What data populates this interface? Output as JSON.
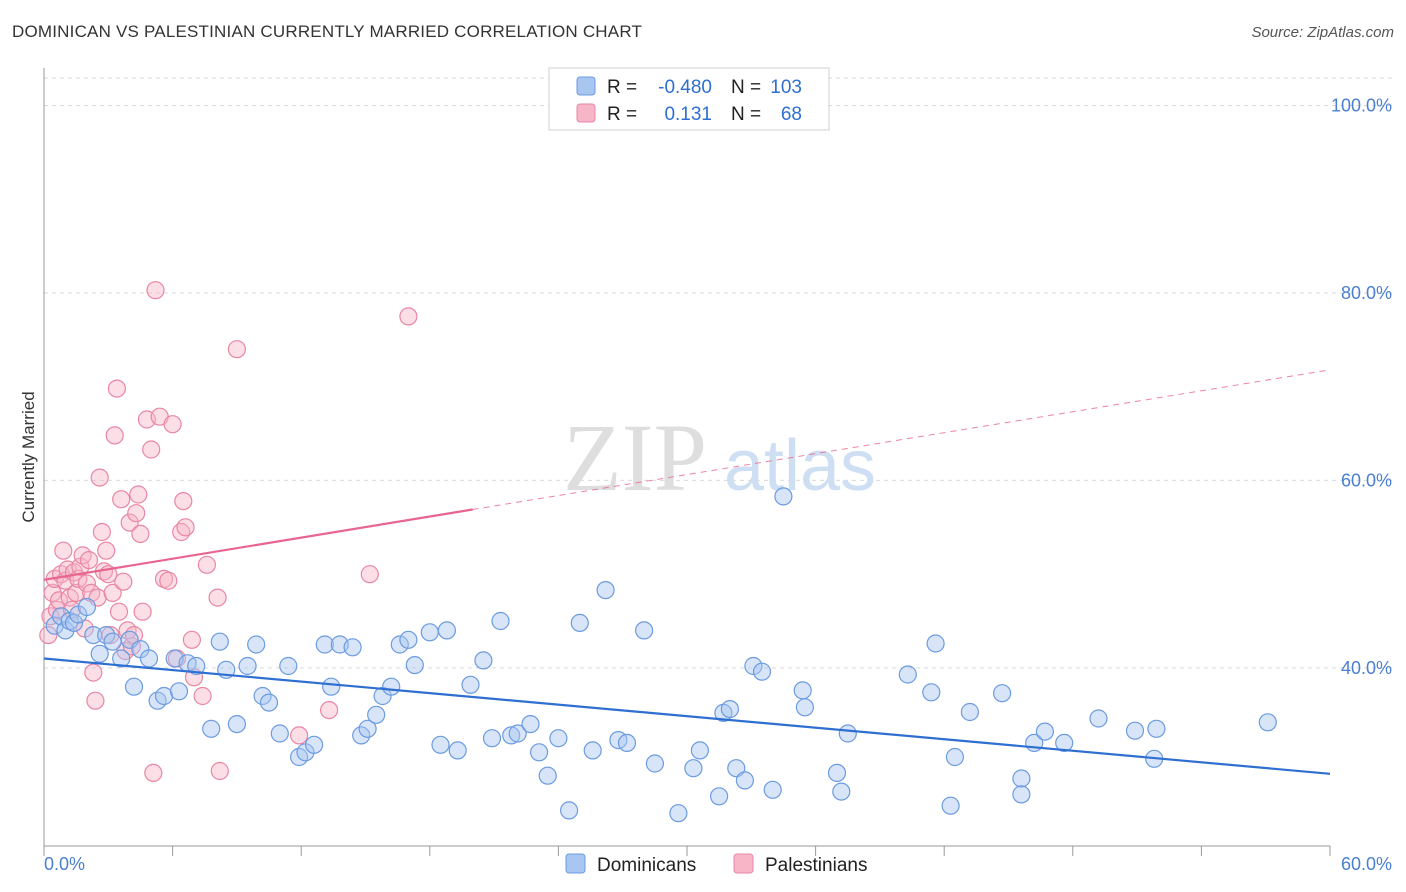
{
  "title": "DOMINICAN VS PALESTINIAN CURRENTLY MARRIED CORRELATION CHART",
  "source": "Source: ZipAtlas.com",
  "watermark": {
    "zip": "ZIP",
    "atlas": "atlas"
  },
  "colors": {
    "blue_fill": "#a9c6f0",
    "blue_stroke": "#6b9be0",
    "blue_line": "#2e6fd1",
    "pink_fill": "#f6b6c8",
    "pink_stroke": "#e986a6",
    "pink_line": "#e8658f",
    "axis_text": "#4a7fd1",
    "grid": "#d9d9d9"
  },
  "legend": {
    "rows": [
      {
        "r_label": "R =",
        "r_value": "-0.480",
        "n_label": "N =",
        "n_value": "103"
      },
      {
        "r_label": "R =",
        "r_value": "0.131",
        "n_label": "N =",
        "n_value": "68"
      }
    ]
  },
  "bottom_legend": [
    "Dominicans",
    "Palestinians"
  ],
  "chart_data": {
    "type": "scatter",
    "title": "DOMINICAN VS PALESTINIAN CURRENTLY MARRIED CORRELATION CHART",
    "xlabel": "",
    "ylabel": "Currently Married",
    "xlim": [
      0,
      60
    ],
    "ylim": [
      21,
      104
    ],
    "x_tick_labels": [
      "0.0%",
      "60.0%"
    ],
    "y_ticks": [
      40,
      60,
      80,
      100
    ],
    "y_tick_labels": [
      "40.0%",
      "60.0%",
      "80.0%",
      "100.0%"
    ],
    "series": [
      {
        "name": "Dominicans",
        "R": -0.48,
        "N": 103,
        "trend": {
          "x0": 0,
          "y0": 41.0,
          "x1": 60,
          "y1": 28.7
        },
        "points": [
          [
            0.5,
            44.5
          ],
          [
            0.8,
            45.5
          ],
          [
            1.0,
            44.0
          ],
          [
            1.2,
            45.0
          ],
          [
            1.4,
            44.8
          ],
          [
            1.6,
            45.7
          ],
          [
            2.0,
            46.5
          ],
          [
            2.3,
            43.5
          ],
          [
            2.6,
            41.5
          ],
          [
            2.9,
            43.5
          ],
          [
            3.2,
            42.8
          ],
          [
            3.6,
            41.0
          ],
          [
            4.0,
            43.0
          ],
          [
            4.2,
            38.0
          ],
          [
            4.5,
            42.0
          ],
          [
            4.9,
            41.0
          ],
          [
            5.3,
            36.5
          ],
          [
            5.6,
            37.0
          ],
          [
            6.1,
            41.0
          ],
          [
            6.3,
            37.5
          ],
          [
            6.7,
            40.5
          ],
          [
            7.1,
            40.2
          ],
          [
            7.8,
            33.5
          ],
          [
            8.2,
            42.8
          ],
          [
            8.5,
            39.8
          ],
          [
            9.0,
            34.0
          ],
          [
            9.5,
            40.2
          ],
          [
            9.9,
            42.5
          ],
          [
            10.2,
            37.0
          ],
          [
            10.5,
            36.3
          ],
          [
            11.0,
            33.0
          ],
          [
            11.4,
            40.2
          ],
          [
            11.9,
            30.5
          ],
          [
            12.2,
            31.0
          ],
          [
            12.6,
            31.8
          ],
          [
            13.1,
            42.5
          ],
          [
            13.4,
            38.0
          ],
          [
            13.8,
            42.5
          ],
          [
            14.4,
            42.2
          ],
          [
            14.8,
            32.8
          ],
          [
            15.1,
            33.5
          ],
          [
            15.5,
            35.0
          ],
          [
            15.8,
            37.0
          ],
          [
            16.2,
            38.0
          ],
          [
            16.6,
            42.5
          ],
          [
            17.0,
            43.0
          ],
          [
            17.3,
            40.3
          ],
          [
            18.0,
            43.8
          ],
          [
            18.5,
            31.8
          ],
          [
            18.8,
            44.0
          ],
          [
            19.3,
            31.2
          ],
          [
            19.9,
            38.2
          ],
          [
            20.5,
            40.8
          ],
          [
            20.9,
            32.5
          ],
          [
            21.3,
            45.0
          ],
          [
            21.8,
            32.8
          ],
          [
            22.1,
            33.0
          ],
          [
            22.7,
            34.0
          ],
          [
            23.1,
            31.0
          ],
          [
            23.5,
            28.5
          ],
          [
            24.0,
            32.5
          ],
          [
            24.5,
            24.8
          ],
          [
            25.0,
            44.8
          ],
          [
            25.6,
            31.2
          ],
          [
            26.2,
            48.3
          ],
          [
            26.8,
            32.3
          ],
          [
            27.2,
            32.0
          ],
          [
            28.0,
            44.0
          ],
          [
            28.5,
            29.8
          ],
          [
            29.6,
            24.5
          ],
          [
            30.3,
            29.3
          ],
          [
            30.6,
            31.2
          ],
          [
            31.5,
            26.3
          ],
          [
            31.7,
            35.2
          ],
          [
            32.0,
            35.6
          ],
          [
            32.3,
            29.3
          ],
          [
            32.7,
            28.0
          ],
          [
            33.1,
            40.2
          ],
          [
            33.5,
            39.6
          ],
          [
            34.0,
            27.0
          ],
          [
            34.5,
            58.3
          ],
          [
            35.4,
            37.6
          ],
          [
            35.5,
            35.8
          ],
          [
            37.0,
            28.8
          ],
          [
            37.2,
            26.8
          ],
          [
            37.5,
            33.0
          ],
          [
            40.3,
            39.3
          ],
          [
            41.4,
            37.4
          ],
          [
            41.6,
            42.6
          ],
          [
            42.3,
            25.3
          ],
          [
            42.5,
            30.5
          ],
          [
            43.2,
            35.3
          ],
          [
            44.7,
            37.3
          ],
          [
            45.6,
            28.2
          ],
          [
            45.6,
            26.5
          ],
          [
            46.2,
            32.0
          ],
          [
            46.7,
            33.2
          ],
          [
            47.6,
            32.0
          ],
          [
            49.2,
            34.6
          ],
          [
            50.9,
            33.3
          ],
          [
            51.8,
            30.3
          ],
          [
            51.9,
            33.5
          ],
          [
            57.1,
            34.2
          ]
        ]
      },
      {
        "name": "Palestinians",
        "R": 0.131,
        "N": 68,
        "trend": {
          "x0": 0,
          "y0": 49.4,
          "x1": 20,
          "y1": 56.9
        },
        "trend_dashed": {
          "x0": 20,
          "y0": 56.9,
          "x1": 60,
          "y1": 71.8
        },
        "points": [
          [
            0.2,
            43.5
          ],
          [
            0.3,
            45.5
          ],
          [
            0.4,
            48.0
          ],
          [
            0.5,
            49.5
          ],
          [
            0.6,
            46.2
          ],
          [
            0.7,
            47.2
          ],
          [
            0.8,
            50.0
          ],
          [
            0.9,
            52.5
          ],
          [
            1.0,
            49.3
          ],
          [
            1.1,
            50.5
          ],
          [
            1.2,
            47.5
          ],
          [
            1.3,
            46.2
          ],
          [
            1.4,
            50.2
          ],
          [
            1.5,
            48.0
          ],
          [
            1.6,
            49.5
          ],
          [
            1.7,
            50.8
          ],
          [
            1.8,
            52.0
          ],
          [
            1.9,
            44.2
          ],
          [
            2.0,
            49.0
          ],
          [
            2.1,
            51.5
          ],
          [
            2.2,
            48.0
          ],
          [
            2.3,
            39.5
          ],
          [
            2.4,
            36.5
          ],
          [
            2.5,
            47.5
          ],
          [
            2.6,
            60.3
          ],
          [
            2.7,
            54.5
          ],
          [
            2.8,
            50.3
          ],
          [
            2.9,
            52.5
          ],
          [
            3.0,
            50.0
          ],
          [
            3.1,
            43.5
          ],
          [
            3.2,
            48.0
          ],
          [
            3.3,
            64.8
          ],
          [
            3.4,
            69.8
          ],
          [
            3.5,
            46.0
          ],
          [
            3.6,
            58.0
          ],
          [
            3.7,
            49.2
          ],
          [
            3.8,
            41.8
          ],
          [
            3.9,
            44.0
          ],
          [
            4.0,
            55.5
          ],
          [
            4.1,
            42.3
          ],
          [
            4.2,
            43.5
          ],
          [
            4.3,
            56.5
          ],
          [
            4.4,
            58.5
          ],
          [
            4.5,
            54.3
          ],
          [
            4.6,
            46.0
          ],
          [
            4.8,
            66.5
          ],
          [
            5.0,
            63.3
          ],
          [
            5.2,
            80.3
          ],
          [
            5.4,
            66.8
          ],
          [
            5.6,
            49.5
          ],
          [
            5.8,
            49.3
          ],
          [
            6.0,
            66.0
          ],
          [
            6.2,
            41.0
          ],
          [
            6.4,
            54.5
          ],
          [
            6.5,
            57.8
          ],
          [
            6.6,
            55.0
          ],
          [
            6.9,
            43.0
          ],
          [
            7.0,
            39.0
          ],
          [
            7.4,
            37.0
          ],
          [
            7.6,
            51.0
          ],
          [
            8.1,
            47.5
          ],
          [
            8.2,
            29.0
          ],
          [
            9.0,
            74.0
          ],
          [
            11.9,
            32.8
          ],
          [
            13.3,
            35.5
          ],
          [
            15.2,
            50.0
          ],
          [
            17.0,
            77.5
          ],
          [
            5.1,
            28.8
          ]
        ]
      }
    ]
  }
}
